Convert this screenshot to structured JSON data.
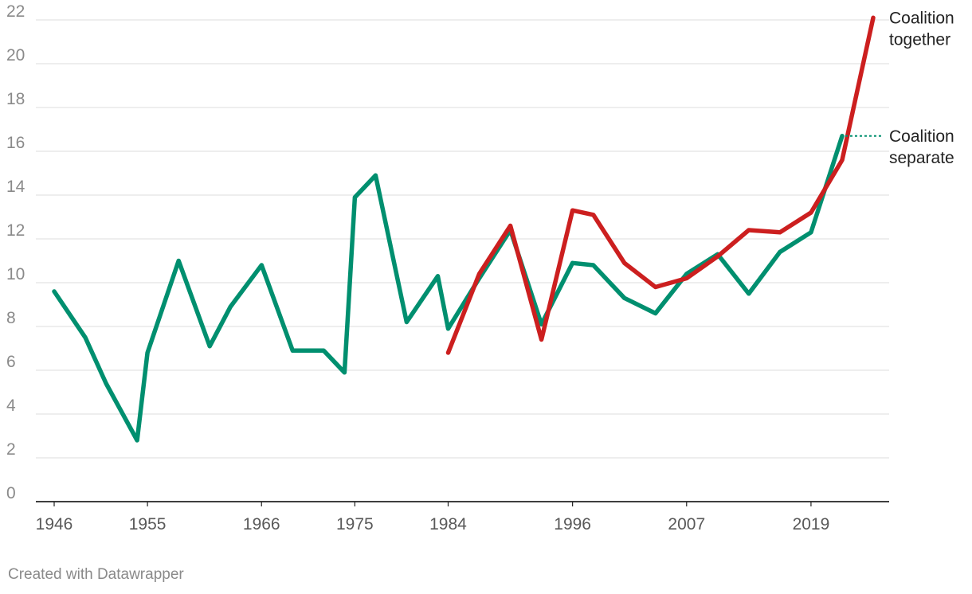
{
  "chart_data": {
    "type": "line",
    "ylim": [
      0,
      22
    ],
    "xlim": [
      1946,
      2025
    ],
    "y_ticks": [
      0,
      2,
      4,
      6,
      8,
      10,
      12,
      14,
      16,
      18,
      20,
      22
    ],
    "x_ticks": [
      1946,
      1955,
      1966,
      1975,
      1984,
      1996,
      2007,
      2019
    ],
    "grid": true,
    "colors": {
      "separate": "#008f6f",
      "together": "#cc1f1f",
      "grid": "#e3e3e3",
      "axis": "#222222"
    },
    "series": [
      {
        "key": "separate",
        "name": "Coalition separate",
        "label_lines": [
          "Coalition",
          "separate"
        ],
        "color": "#008f6f",
        "x": [
          1946,
          1949,
          1951,
          1954,
          1955,
          1958,
          1961,
          1963,
          1966,
          1969,
          1972,
          1974,
          1975,
          1977,
          1980,
          1983,
          1984,
          1987,
          1990,
          1993,
          1996,
          1998,
          2001,
          2004,
          2007,
          2010,
          2013,
          2016,
          2019,
          2022
        ],
        "values": [
          9.6,
          7.5,
          5.4,
          2.8,
          6.8,
          11.0,
          7.1,
          8.9,
          10.8,
          6.9,
          6.9,
          5.9,
          13.9,
          14.9,
          8.2,
          10.3,
          7.9,
          10.2,
          12.4,
          8.1,
          10.9,
          10.8,
          9.3,
          8.6,
          10.4,
          11.3,
          9.5,
          11.4,
          12.3,
          16.7
        ]
      },
      {
        "key": "together",
        "name": "Coalition together",
        "label_lines": [
          "Coalition",
          "together"
        ],
        "color": "#cc1f1f",
        "x": [
          1984,
          1987,
          1990,
          1993,
          1996,
          1998,
          2001,
          2004,
          2007,
          2010,
          2013,
          2016,
          2019,
          2022,
          2025
        ],
        "values": [
          6.8,
          10.4,
          12.6,
          7.4,
          13.3,
          13.1,
          10.9,
          9.8,
          10.2,
          11.2,
          12.4,
          12.3,
          13.2,
          15.6,
          22.1
        ]
      }
    ]
  },
  "footer": {
    "credit": "Created with Datawrapper"
  }
}
